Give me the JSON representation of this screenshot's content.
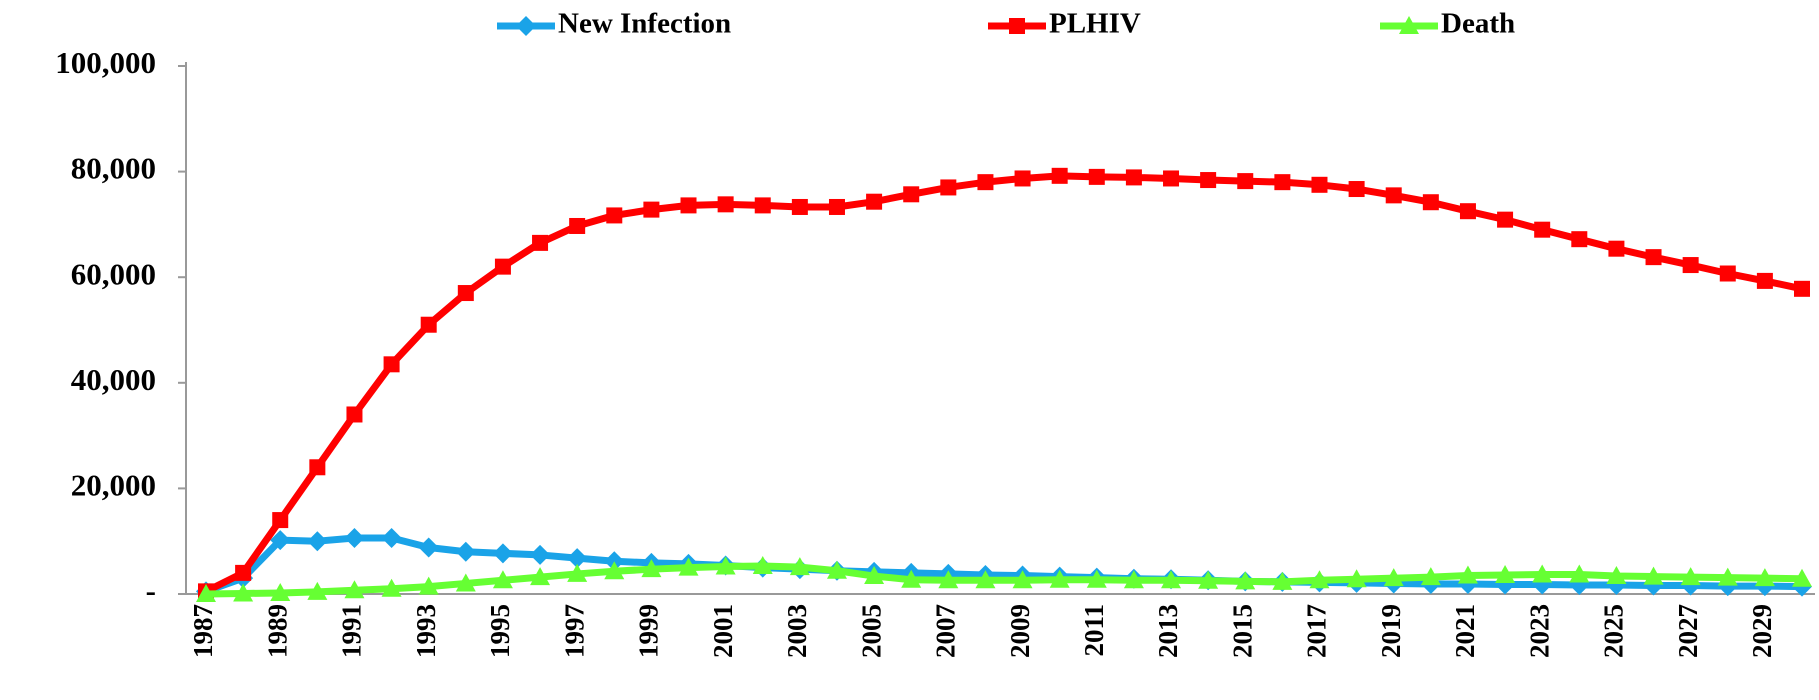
{
  "chart_data": {
    "type": "line",
    "categories": [
      "1987",
      null,
      "1989",
      null,
      "1991",
      null,
      "1993",
      null,
      "1995",
      null,
      "1997",
      null,
      "1999",
      null,
      "2001",
      null,
      "2003",
      null,
      "2005",
      null,
      "2007",
      null,
      "2009",
      null,
      "2011",
      null,
      "2013",
      null,
      "2015",
      null,
      "2017",
      null,
      "2019",
      null,
      "2021",
      null,
      "2023",
      null,
      "2025",
      null,
      "2027",
      null,
      "2029",
      null
    ],
    "series": [
      {
        "name": "New Infection",
        "color": "#1aa3e8",
        "marker": "diamond",
        "values": [
          500,
          3000,
          10200,
          10000,
          10600,
          10600,
          8800,
          8000,
          7700,
          7400,
          6800,
          6200,
          5900,
          5700,
          5400,
          5000,
          4700,
          4400,
          4200,
          4000,
          3800,
          3600,
          3500,
          3300,
          3100,
          2900,
          2800,
          2600,
          2400,
          2300,
          2200,
          2100,
          2000,
          1900,
          1900,
          1800,
          1800,
          1700,
          1700,
          1600,
          1600,
          1500,
          1500,
          1400
        ]
      },
      {
        "name": "PLHIV",
        "color": "#ff0000",
        "marker": "square",
        "values": [
          500,
          4000,
          14000,
          24000,
          34000,
          43500,
          51000,
          57000,
          62000,
          66500,
          69700,
          71700,
          72800,
          73600,
          73800,
          73600,
          73300,
          73300,
          74300,
          75700,
          77000,
          78000,
          78700,
          79200,
          79000,
          78900,
          78700,
          78400,
          78200,
          78000,
          77500,
          76700,
          75500,
          74200,
          72500,
          70900,
          69000,
          67200,
          65400,
          63800,
          62300,
          60700,
          59300,
          57800
        ]
      },
      {
        "name": "Death",
        "color": "#66ff33",
        "marker": "triangle",
        "values": [
          0,
          100,
          200,
          400,
          700,
          1000,
          1400,
          2000,
          2600,
          3200,
          3800,
          4300,
          4700,
          5000,
          5200,
          5300,
          5100,
          4400,
          3400,
          2700,
          2600,
          2600,
          2600,
          2700,
          2700,
          2600,
          2600,
          2500,
          2400,
          2300,
          2600,
          2800,
          3000,
          3200,
          3500,
          3600,
          3700,
          3700,
          3400,
          3300,
          3200,
          3100,
          3000,
          2900
        ]
      }
    ],
    "ylim": [
      0,
      100000
    ],
    "yticks": [
      {
        "value": 0,
        "label": "-"
      },
      {
        "value": 20000,
        "label": "20,000"
      },
      {
        "value": 40000,
        "label": "40,000"
      },
      {
        "value": 60000,
        "label": "60,000"
      },
      {
        "value": 80000,
        "label": "80,000"
      },
      {
        "value": 100000,
        "label": "100,000"
      }
    ],
    "grid": false,
    "legend": "top"
  }
}
